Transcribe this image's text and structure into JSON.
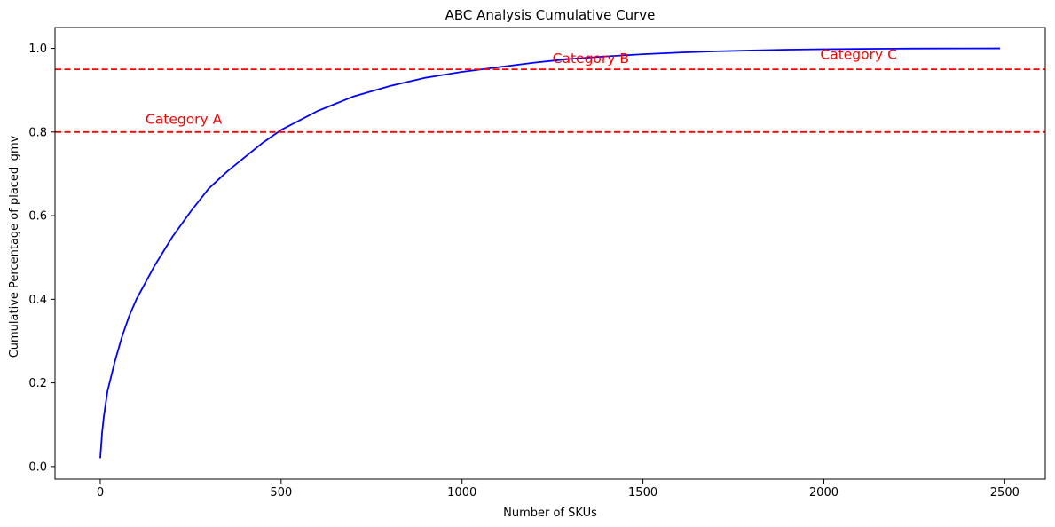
{
  "chart_data": {
    "type": "line",
    "title": "ABC Analysis Cumulative Curve",
    "xlabel": "Number of SKUs",
    "ylabel": "Cumulative Percentage of placed_gmv",
    "xlim": [
      -125,
      2612
    ],
    "ylim": [
      -0.03,
      1.05
    ],
    "xticks": [
      0,
      500,
      1000,
      1500,
      2000,
      2500
    ],
    "yticks": [
      0.0,
      0.2,
      0.4,
      0.6,
      0.8,
      1.0
    ],
    "xtick_labels": [
      "0",
      "500",
      "1000",
      "1500",
      "2000",
      "2500"
    ],
    "ytick_labels": [
      "0.0",
      "0.2",
      "0.4",
      "0.6",
      "0.8",
      "1.0"
    ],
    "grid": false,
    "series": [
      {
        "color": "#0000ff",
        "x": [
          0,
          5,
          10,
          20,
          40,
          60,
          80,
          100,
          150,
          200,
          250,
          300,
          350,
          400,
          450,
          500,
          600,
          700,
          800,
          900,
          1000,
          1100,
          1200,
          1300,
          1400,
          1500,
          1600,
          1700,
          1800,
          1900,
          2000,
          2100,
          2200,
          2300,
          2400,
          2487
        ],
        "y": [
          0.02,
          0.08,
          0.12,
          0.18,
          0.25,
          0.31,
          0.36,
          0.4,
          0.48,
          0.55,
          0.61,
          0.665,
          0.705,
          0.74,
          0.775,
          0.805,
          0.85,
          0.885,
          0.91,
          0.93,
          0.944,
          0.955,
          0.966,
          0.975,
          0.981,
          0.986,
          0.99,
          0.993,
          0.995,
          0.997,
          0.998,
          0.9988,
          0.9994,
          0.9997,
          0.9999,
          1.0
        ]
      }
    ],
    "reference_lines": [
      {
        "y": 0.8,
        "color": "#ff0000",
        "style": "dashed"
      },
      {
        "y": 0.95,
        "color": "#ff0000",
        "style": "dashed"
      }
    ],
    "annotations": [
      {
        "text": "Category A",
        "x": 125,
        "y": 0.82,
        "color": "#ff0000"
      },
      {
        "text": "Category B",
        "x": 1250,
        "y": 0.965,
        "color": "#ff0000"
      },
      {
        "text": "Category C",
        "x": 1990,
        "y": 0.975,
        "color": "#ff0000"
      }
    ]
  }
}
